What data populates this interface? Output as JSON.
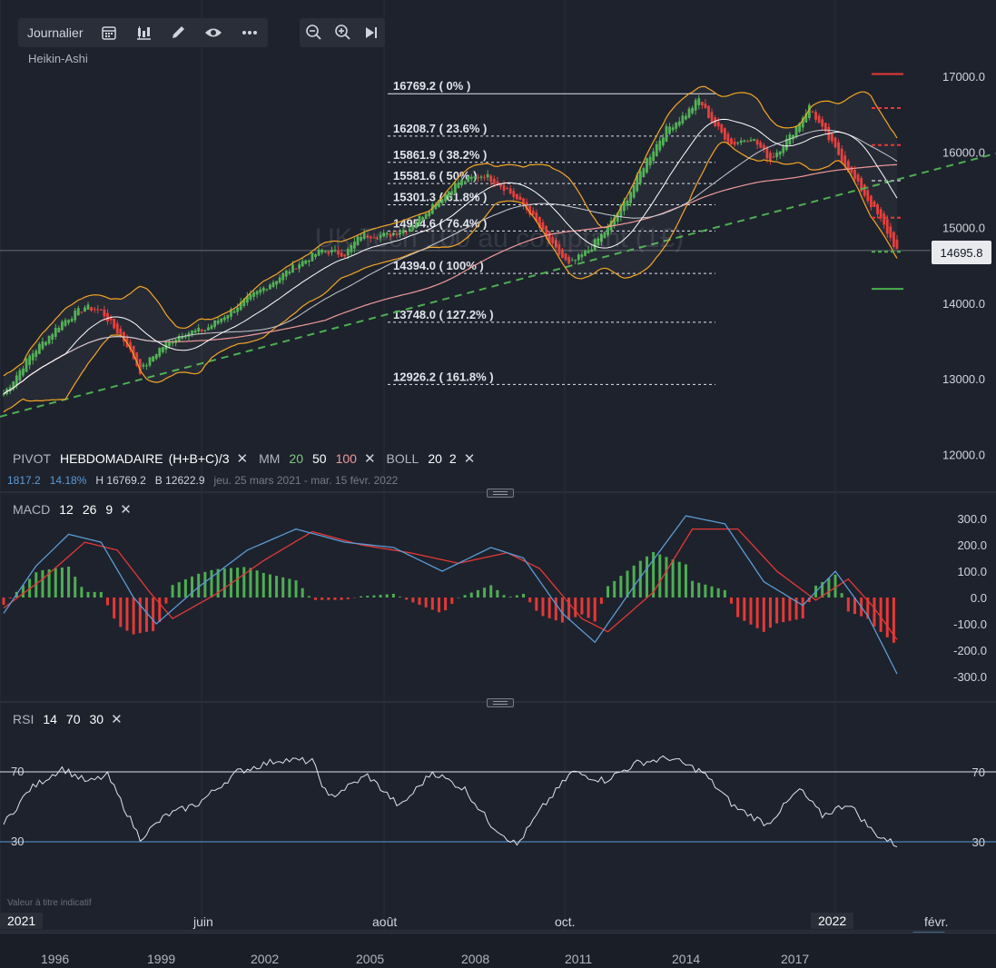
{
  "toolbar": {
    "interval_label": "Journalier",
    "chart_style": "Heikin-Ashi"
  },
  "watermark": "UK Tech 100 au comptant (1£)",
  "current_price": "14695.8",
  "price_axis": {
    "ticks": [
      "17000.0",
      "16000.0",
      "15000.0",
      "14000.0",
      "13000.0",
      "12000.0"
    ]
  },
  "fibonacci": [
    {
      "price": 16769.2,
      "label": "16769.2 ( 0% )"
    },
    {
      "price": 16208.7,
      "label": "16208.7 ( 23.6% )"
    },
    {
      "price": 15861.9,
      "label": "15861.9 ( 38.2% )"
    },
    {
      "price": 15581.6,
      "label": "15581.6 ( 50% )"
    },
    {
      "price": 15301.3,
      "label": "15301.3 ( 61.8% )"
    },
    {
      "price": 14954.6,
      "label": "14954.6 ( 76.4% )"
    },
    {
      "price": 14394.0,
      "label": "14394.0 ( 100% )"
    },
    {
      "price": 13748.0,
      "label": "13748.0 ( 127.2% )"
    },
    {
      "price": 12926.2,
      "label": "12926.2 ( 161.8% )"
    }
  ],
  "legend_main": {
    "pivot_name": "PIVOT",
    "pivot_period": "HEBDOMADAIRE",
    "pivot_formula": "(H+B+C)/3",
    "mm_name": "MM",
    "mm_20": "20",
    "mm_50": "50",
    "mm_100": "100",
    "boll_name": "BOLL",
    "boll_period": "20",
    "boll_dev": "2"
  },
  "stats": {
    "change": "1817.2",
    "change_pct": "14.18%",
    "high": "H 16769.2",
    "low": "B 12622.9",
    "range": "jeu. 25 mars 2021 - mar. 15 févr. 2022"
  },
  "macd": {
    "name": "MACD",
    "fast": "12",
    "slow": "26",
    "signal": "9",
    "ticks": [
      "300.0",
      "200.0",
      "100.0",
      "0.0",
      "-100.0",
      "-200.0",
      "-300.0"
    ]
  },
  "rsi": {
    "name": "RSI",
    "period": "14",
    "upper": "70",
    "lower": "30",
    "ticks": [
      "70",
      "30"
    ]
  },
  "time_axis": {
    "labels": [
      "juin",
      "août",
      "oct.",
      "févr."
    ],
    "year_start": "2021",
    "year_current": "2022"
  },
  "navigator_years": [
    "1996",
    "1999",
    "2002",
    "2005",
    "2008",
    "2011",
    "2014",
    "2017"
  ],
  "disclaimer": "Valeur à titre indicatif",
  "colors": {
    "background": "#1e222d",
    "up": "#4caf50",
    "down": "#e53935",
    "bollinger": "#f5a623",
    "ma20": "#ffffff",
    "ma50": "#d1d4dc",
    "ma100": "#ef9a9a",
    "trendline": "#4caf50",
    "macd_line": "#5b9bd5",
    "signal_line": "#e53935"
  },
  "chart_data": {
    "type": "candlestick",
    "title": "UK Tech 100 au comptant (1£)",
    "style": "Heikin-Ashi",
    "interval": "Journalier",
    "ylim": [
      12000,
      17200
    ],
    "x_labels": [
      "2021",
      "juin",
      "août",
      "oct.",
      "2022",
      "févr."
    ],
    "close_path": [
      {
        "i": 0,
        "v": 12800
      },
      {
        "i": 8,
        "v": 13300
      },
      {
        "i": 18,
        "v": 13750
      },
      {
        "i": 25,
        "v": 13950
      },
      {
        "i": 30,
        "v": 13900
      },
      {
        "i": 38,
        "v": 13450
      },
      {
        "i": 42,
        "v": 13100
      },
      {
        "i": 48,
        "v": 13400
      },
      {
        "i": 55,
        "v": 13600
      },
      {
        "i": 62,
        "v": 13650
      },
      {
        "i": 70,
        "v": 13900
      },
      {
        "i": 80,
        "v": 14200
      },
      {
        "i": 90,
        "v": 14500
      },
      {
        "i": 98,
        "v": 14700
      },
      {
        "i": 105,
        "v": 14650
      },
      {
        "i": 110,
        "v": 14900
      },
      {
        "i": 118,
        "v": 14900
      },
      {
        "i": 125,
        "v": 15000
      },
      {
        "i": 132,
        "v": 15300
      },
      {
        "i": 140,
        "v": 15600
      },
      {
        "i": 148,
        "v": 15700
      },
      {
        "i": 155,
        "v": 15500
      },
      {
        "i": 162,
        "v": 15200
      },
      {
        "i": 168,
        "v": 14800
      },
      {
        "i": 174,
        "v": 14500
      },
      {
        "i": 180,
        "v": 14700
      },
      {
        "i": 186,
        "v": 15000
      },
      {
        "i": 192,
        "v": 15400
      },
      {
        "i": 198,
        "v": 15900
      },
      {
        "i": 204,
        "v": 16300
      },
      {
        "i": 210,
        "v": 16500
      },
      {
        "i": 214,
        "v": 16700
      },
      {
        "i": 218,
        "v": 16400
      },
      {
        "i": 224,
        "v": 16100
      },
      {
        "i": 230,
        "v": 16200
      },
      {
        "i": 236,
        "v": 15900
      },
      {
        "i": 242,
        "v": 16200
      },
      {
        "i": 248,
        "v": 16600
      },
      {
        "i": 252,
        "v": 16300
      },
      {
        "i": 258,
        "v": 15900
      },
      {
        "i": 264,
        "v": 15500
      },
      {
        "i": 270,
        "v": 15100
      },
      {
        "i": 275,
        "v": 14695.8
      }
    ],
    "macd_path": [
      {
        "i": 0,
        "v": -60
      },
      {
        "i": 10,
        "v": 120
      },
      {
        "i": 20,
        "v": 240
      },
      {
        "i": 30,
        "v": 210
      },
      {
        "i": 40,
        "v": 0
      },
      {
        "i": 47,
        "v": -100
      },
      {
        "i": 60,
        "v": 40
      },
      {
        "i": 75,
        "v": 180
      },
      {
        "i": 90,
        "v": 260
      },
      {
        "i": 105,
        "v": 210
      },
      {
        "i": 120,
        "v": 190
      },
      {
        "i": 135,
        "v": 100
      },
      {
        "i": 150,
        "v": 190
      },
      {
        "i": 160,
        "v": 150
      },
      {
        "i": 172,
        "v": -60
      },
      {
        "i": 182,
        "v": -170
      },
      {
        "i": 195,
        "v": 60
      },
      {
        "i": 210,
        "v": 310
      },
      {
        "i": 222,
        "v": 280
      },
      {
        "i": 234,
        "v": 60
      },
      {
        "i": 246,
        "v": -30
      },
      {
        "i": 256,
        "v": 100
      },
      {
        "i": 266,
        "v": -70
      },
      {
        "i": 275,
        "v": -290
      }
    ],
    "signal_path": [
      {
        "i": 0,
        "v": -40
      },
      {
        "i": 12,
        "v": 70
      },
      {
        "i": 25,
        "v": 210
      },
      {
        "i": 35,
        "v": 180
      },
      {
        "i": 45,
        "v": 20
      },
      {
        "i": 52,
        "v": -80
      },
      {
        "i": 65,
        "v": 10
      },
      {
        "i": 80,
        "v": 140
      },
      {
        "i": 95,
        "v": 250
      },
      {
        "i": 110,
        "v": 200
      },
      {
        "i": 125,
        "v": 170
      },
      {
        "i": 140,
        "v": 130
      },
      {
        "i": 155,
        "v": 170
      },
      {
        "i": 165,
        "v": 110
      },
      {
        "i": 178,
        "v": -80
      },
      {
        "i": 186,
        "v": -130
      },
      {
        "i": 200,
        "v": 20
      },
      {
        "i": 212,
        "v": 260
      },
      {
        "i": 226,
        "v": 260
      },
      {
        "i": 238,
        "v": 100
      },
      {
        "i": 250,
        "v": -10
      },
      {
        "i": 260,
        "v": 70
      },
      {
        "i": 268,
        "v": -40
      },
      {
        "i": 275,
        "v": -160
      }
    ],
    "rsi_path": [
      {
        "i": 0,
        "v": 40
      },
      {
        "i": 8,
        "v": 60
      },
      {
        "i": 18,
        "v": 72
      },
      {
        "i": 26,
        "v": 64
      },
      {
        "i": 32,
        "v": 68
      },
      {
        "i": 42,
        "v": 32
      },
      {
        "i": 50,
        "v": 45
      },
      {
        "i": 60,
        "v": 52
      },
      {
        "i": 72,
        "v": 70
      },
      {
        "i": 85,
        "v": 77
      },
      {
        "i": 95,
        "v": 76
      },
      {
        "i": 100,
        "v": 55
      },
      {
        "i": 112,
        "v": 68
      },
      {
        "i": 122,
        "v": 50
      },
      {
        "i": 132,
        "v": 70
      },
      {
        "i": 142,
        "v": 60
      },
      {
        "i": 150,
        "v": 40
      },
      {
        "i": 158,
        "v": 28
      },
      {
        "i": 166,
        "v": 50
      },
      {
        "i": 175,
        "v": 70
      },
      {
        "i": 185,
        "v": 65
      },
      {
        "i": 195,
        "v": 75
      },
      {
        "i": 205,
        "v": 78
      },
      {
        "i": 215,
        "v": 70
      },
      {
        "i": 225,
        "v": 50
      },
      {
        "i": 235,
        "v": 40
      },
      {
        "i": 245,
        "v": 60
      },
      {
        "i": 252,
        "v": 45
      },
      {
        "i": 260,
        "v": 52
      },
      {
        "i": 268,
        "v": 35
      },
      {
        "i": 275,
        "v": 28
      }
    ]
  }
}
